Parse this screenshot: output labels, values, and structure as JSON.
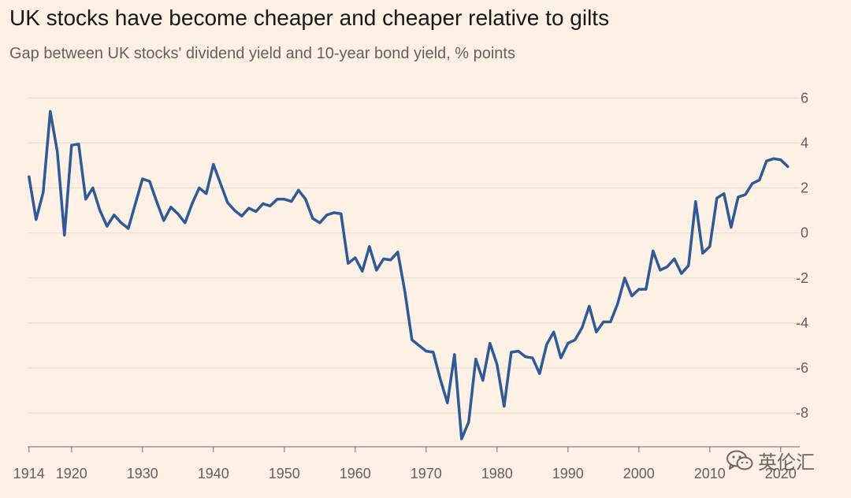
{
  "header": {
    "title": "UK stocks have become cheaper and cheaper relative to gilts",
    "subtitle": "Gap between UK stocks' dividend yield and 10-year bond yield, % points"
  },
  "watermark": {
    "text": "英伦汇",
    "icon": "wechat-icon"
  },
  "colors": {
    "background": "#fdf1e5",
    "series": "#2e5a98",
    "grid": "#ebdccc"
  },
  "chart_data": {
    "type": "line",
    "title": "UK stocks have become cheaper and cheaper relative to gilts",
    "subtitle": "Gap between UK stocks' dividend yield and 10-year bond yield, % points",
    "xlabel": "",
    "ylabel": "",
    "xlim": [
      1913.8,
      2021.8
    ],
    "ylim": [
      -9.5,
      6.5
    ],
    "y_axis_position": "right",
    "grid": "horizontal",
    "legend": "none",
    "x_ticks": [
      1914,
      1920,
      1930,
      1940,
      1950,
      1960,
      1970,
      1980,
      1990,
      2000,
      2010,
      2020
    ],
    "x_tick_labels": [
      "1914",
      "1920",
      "1930",
      "1940",
      "1950",
      "1960",
      "1970",
      "1980",
      "1990",
      "2000",
      "2010",
      "2020"
    ],
    "y_ticks": [
      6,
      4,
      2,
      0,
      -2,
      -4,
      -6,
      -8
    ],
    "y_tick_labels": [
      "6",
      "4",
      "2",
      "0",
      "-2",
      "-4",
      "-6",
      "-8"
    ],
    "series": [
      {
        "x": [
          1914,
          1915,
          1916,
          1917,
          1918,
          1919,
          1920,
          1921,
          1922,
          1923,
          1924,
          1925,
          1926,
          1927,
          1928,
          1929,
          1930,
          1931,
          1932,
          1933,
          1934,
          1935,
          1936,
          1937,
          1938,
          1939,
          1940,
          1941,
          1942,
          1943,
          1944,
          1945,
          1946,
          1947,
          1948,
          1949,
          1950,
          1951,
          1952,
          1953,
          1954,
          1955,
          1956,
          1957,
          1958,
          1959,
          1960,
          1961,
          1962,
          1963,
          1964,
          1965,
          1966,
          1967,
          1968,
          1969,
          1970,
          1971,
          1972,
          1973,
          1974,
          1975,
          1976,
          1977,
          1978,
          1979,
          1980,
          1981,
          1982,
          1983,
          1984,
          1985,
          1986,
          1987,
          1988,
          1989,
          1990,
          1991,
          1992,
          1993,
          1994,
          1995,
          1996,
          1997,
          1998,
          1999,
          2000,
          2001,
          2002,
          2003,
          2004,
          2005,
          2006,
          2007,
          2008,
          2009,
          2010,
          2011,
          2012,
          2013,
          2014,
          2015,
          2016,
          2017,
          2018,
          2019,
          2020,
          2021
        ],
        "values": [
          2.5,
          0.6,
          1.8,
          5.4,
          3.6,
          -0.1,
          3.9,
          3.95,
          1.5,
          2.0,
          1.0,
          0.3,
          0.8,
          0.45,
          0.2,
          1.3,
          2.4,
          2.3,
          1.4,
          0.55,
          1.15,
          0.85,
          0.45,
          1.3,
          2.0,
          1.75,
          3.05,
          2.2,
          1.35,
          1.0,
          0.75,
          1.1,
          0.95,
          1.3,
          1.2,
          1.5,
          1.5,
          1.4,
          1.9,
          1.5,
          0.65,
          0.45,
          0.8,
          0.9,
          0.85,
          -1.35,
          -1.1,
          -1.7,
          -0.6,
          -1.65,
          -1.15,
          -1.2,
          -0.85,
          -2.6,
          -4.75,
          -5.0,
          -5.25,
          -5.3,
          -6.5,
          -7.55,
          -5.4,
          -9.15,
          -8.4,
          -5.6,
          -6.55,
          -4.9,
          -5.85,
          -7.7,
          -5.3,
          -5.25,
          -5.5,
          -5.55,
          -6.25,
          -4.95,
          -4.4,
          -5.55,
          -4.9,
          -4.75,
          -4.2,
          -3.25,
          -4.4,
          -3.95,
          -3.95,
          -3.15,
          -2.0,
          -2.8,
          -2.5,
          -2.5,
          -0.8,
          -1.65,
          -1.5,
          -1.15,
          -1.8,
          -1.45,
          1.4,
          -0.9,
          -0.6,
          1.55,
          1.75,
          0.25,
          1.6,
          1.7,
          2.2,
          2.35,
          3.2,
          3.3,
          3.25,
          2.95
        ]
      }
    ]
  }
}
